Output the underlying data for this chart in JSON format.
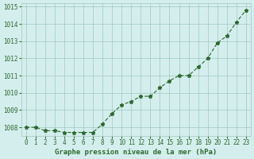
{
  "x": [
    0,
    1,
    2,
    3,
    4,
    5,
    6,
    7,
    8,
    9,
    10,
    11,
    12,
    13,
    14,
    15,
    16,
    17,
    18,
    19,
    20,
    21,
    22,
    23
  ],
  "y": [
    1008.0,
    1008.0,
    1007.8,
    1007.8,
    1007.7,
    1007.7,
    1007.7,
    1007.7,
    1008.2,
    1008.8,
    1009.3,
    1009.5,
    1009.8,
    1009.8,
    1010.3,
    1010.7,
    1011.0,
    1011.0,
    1011.5,
    1012.0,
    1012.9,
    1013.3,
    1014.1,
    1014.8
  ],
  "line_color": "#2d6a2d",
  "marker": "*",
  "bg_color": "#d4eeed",
  "grid_color": "#a0c8c0",
  "xlabel": "Graphe pression niveau de la mer (hPa)",
  "xlabel_color": "#2d6a2d",
  "tick_color": "#2d6a2d",
  "ylim": [
    1007.5,
    1015.2
  ],
  "yticks": [
    1008,
    1009,
    1010,
    1011,
    1012,
    1013,
    1014,
    1015
  ],
  "xlim": [
    -0.5,
    23.5
  ],
  "xticks": [
    0,
    1,
    2,
    3,
    4,
    5,
    6,
    7,
    8,
    9,
    10,
    11,
    12,
    13,
    14,
    15,
    16,
    17,
    18,
    19,
    20,
    21,
    22,
    23
  ]
}
